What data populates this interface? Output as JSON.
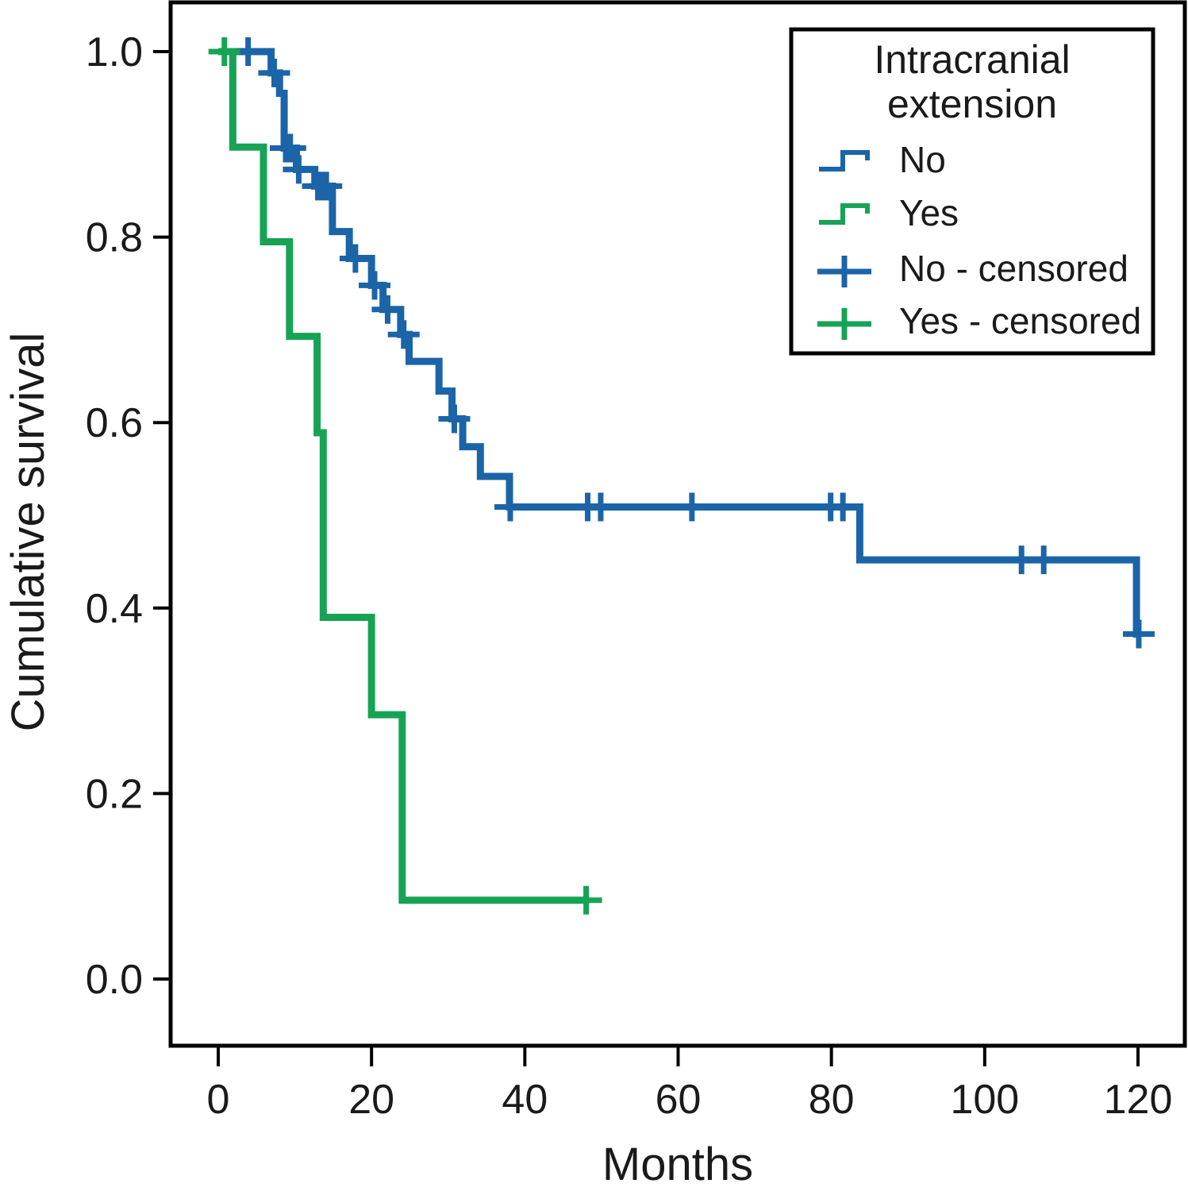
{
  "figure": {
    "background": "#ffffff",
    "text_color": "#1a1a1a",
    "frame_color": "#000000"
  },
  "chart_data": {
    "type": "line",
    "subtype": "kaplan-meier-step",
    "title": "",
    "xlabel": "Months",
    "ylabel": "Cumulative survival",
    "xlim": [
      0,
      126
    ],
    "ylim": [
      0,
      1.05
    ],
    "grid": false,
    "x_ticks": [
      {
        "v": 0,
        "label": "0"
      },
      {
        "v": 20,
        "label": "20"
      },
      {
        "v": 40,
        "label": "40"
      },
      {
        "v": 60,
        "label": "60"
      },
      {
        "v": 80,
        "label": "80"
      },
      {
        "v": 100,
        "label": "100"
      },
      {
        "v": 120,
        "label": "120"
      }
    ],
    "y_ticks": [
      {
        "v": 0.0,
        "label": "0.0"
      },
      {
        "v": 0.2,
        "label": "0.2"
      },
      {
        "v": 0.4,
        "label": "0.4"
      },
      {
        "v": 0.6,
        "label": "0.6"
      },
      {
        "v": 0.8,
        "label": "0.8"
      },
      {
        "v": 1.0,
        "label": "1.0"
      }
    ],
    "legend": {
      "position": "top-right",
      "title_lines": [
        "Intracranial",
        "extension"
      ],
      "items": [
        {
          "label": "No",
          "type": "step-line",
          "color": "#1b64a8"
        },
        {
          "label": "Yes",
          "type": "step-line",
          "color": "#17a355"
        },
        {
          "label": "No - censored",
          "type": "plus-marker",
          "color": "#1b64a8"
        },
        {
          "label": "Yes - censored",
          "type": "plus-marker",
          "color": "#17a355"
        }
      ]
    },
    "series": [
      {
        "name": "No",
        "color": "#1b64a8",
        "steps": [
          [
            0,
            1.0
          ],
          [
            6.9,
            0.977
          ],
          [
            8.0,
            0.955
          ],
          [
            8.6,
            0.896
          ],
          [
            10.2,
            0.873
          ],
          [
            12.6,
            0.855
          ],
          [
            14.9,
            0.806
          ],
          [
            17.1,
            0.777
          ],
          [
            20.0,
            0.748
          ],
          [
            21.5,
            0.722
          ],
          [
            23.8,
            0.695
          ],
          [
            24.9,
            0.666
          ],
          [
            28.8,
            0.634
          ],
          [
            30.5,
            0.604
          ],
          [
            31.9,
            0.574
          ],
          [
            34.2,
            0.542
          ],
          [
            38.0,
            0.509
          ],
          [
            83.7,
            0.452
          ],
          [
            119.8,
            0.372
          ]
        ],
        "end_time": 120.4,
        "censors": [
          [
            3.9,
            1.0
          ],
          [
            7.3,
            0.977
          ],
          [
            8.8,
            0.896
          ],
          [
            9.4,
            0.896
          ],
          [
            10.5,
            0.873
          ],
          [
            13.0,
            0.855
          ],
          [
            13.6,
            0.855
          ],
          [
            14.1,
            0.855
          ],
          [
            17.9,
            0.777
          ],
          [
            20.4,
            0.748
          ],
          [
            22.1,
            0.722
          ],
          [
            24.2,
            0.695
          ],
          [
            30.8,
            0.604
          ],
          [
            38.1,
            0.509
          ],
          [
            48.2,
            0.509
          ],
          [
            49.9,
            0.509
          ],
          [
            61.8,
            0.509
          ],
          [
            79.9,
            0.509
          ],
          [
            81.5,
            0.509
          ],
          [
            104.8,
            0.452
          ],
          [
            107.7,
            0.452
          ],
          [
            120.1,
            0.372
          ]
        ]
      },
      {
        "name": "Yes",
        "color": "#17a355",
        "steps": [
          [
            0,
            1.0
          ],
          [
            1.9,
            0.897
          ],
          [
            5.9,
            0.795
          ],
          [
            9.3,
            0.693
          ],
          [
            12.9,
            0.589
          ],
          [
            13.7,
            0.39
          ],
          [
            20.0,
            0.285
          ],
          [
            24.0,
            0.085
          ]
        ],
        "end_time": 48.4,
        "censors": [
          [
            0.8,
            1.0
          ],
          [
            48.0,
            0.085
          ]
        ]
      }
    ]
  }
}
